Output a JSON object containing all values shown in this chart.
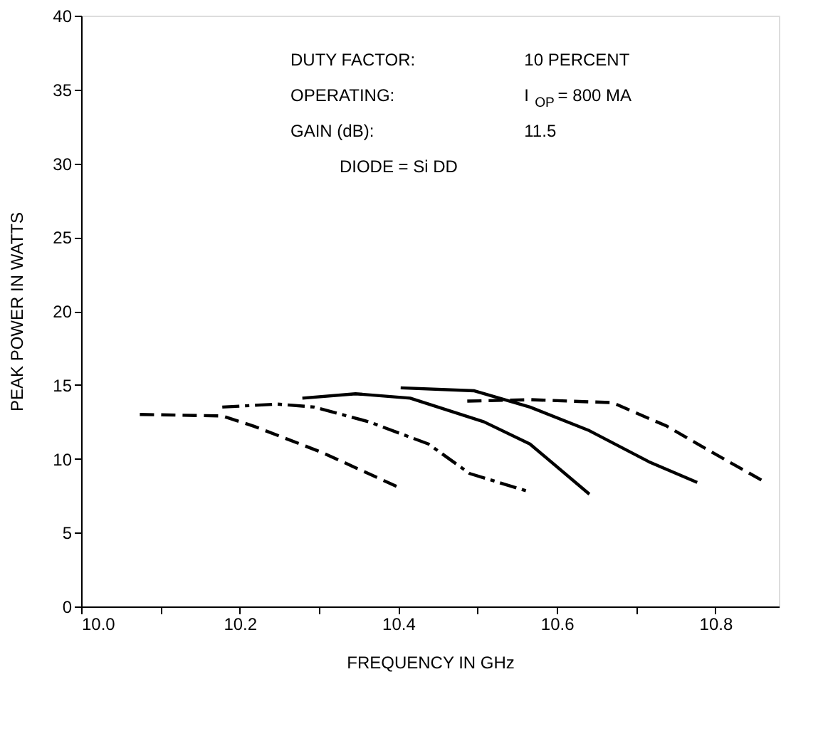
{
  "chart_data": {
    "type": "line",
    "xlabel": "FREQUENCY IN GHz",
    "ylabel": "PEAK POWER IN WATTS",
    "annotations": [
      "DUTY FACTOR:",
      "10 PERCENT",
      "OPERATING:",
      "I$_{OP}$ = 800 MA",
      "GAIN (dB):",
      "11.5",
      "DIODE = Si DD"
    ],
    "series": [
      {
        "color": "#000000",
        "line_style": "dashed",
        "x": [
          10.074,
          10.178,
          10.218,
          10.305,
          10.403
        ],
        "values": [
          13.0,
          12.9,
          12.2,
          10.4,
          8.0
        ]
      },
      {
        "color": "#000000",
        "line_style": "dashdot",
        "x": [
          10.178,
          10.247,
          10.294,
          10.363,
          10.438,
          10.49,
          10.563
        ],
        "values": [
          13.5,
          13.7,
          13.5,
          12.5,
          11.0,
          9.0,
          7.8
        ]
      },
      {
        "color": "#000000",
        "line_style": "solid",
        "x": [
          10.279,
          10.346,
          10.415,
          10.508,
          10.566,
          10.641
        ],
        "values": [
          14.1,
          14.4,
          14.1,
          12.5,
          11.0,
          7.6
        ]
      },
      {
        "color": "#000000",
        "line_style": "solid",
        "x": [
          10.403,
          10.496,
          10.566,
          10.641,
          10.716,
          10.777
        ],
        "values": [
          14.8,
          14.6,
          13.5,
          11.9,
          9.8,
          8.4
        ]
      },
      {
        "color": "#000000",
        "line_style": "dashed",
        "x": [
          10.487,
          10.566,
          10.67,
          10.739,
          10.797,
          10.86
        ],
        "values": [
          13.9,
          14.0,
          13.8,
          12.2,
          10.4,
          8.5
        ]
      }
    ],
    "xlim": [
      10.0,
      10.88
    ],
    "ylim": [
      0,
      40
    ],
    "xticks": [
      {
        "value": 10.0,
        "label": "10.0"
      },
      {
        "value": 10.1,
        "label": null
      },
      10.2,
      {
        "value": 10.3,
        "label": null
      },
      10.4,
      {
        "value": 10.5,
        "label": null
      },
      10.6,
      {
        "value": 10.7,
        "label": null
      },
      10.8
    ],
    "yticks": [
      0,
      5,
      10,
      15,
      20,
      25,
      30,
      35,
      40
    ],
    "grid": false,
    "marker": "none"
  }
}
